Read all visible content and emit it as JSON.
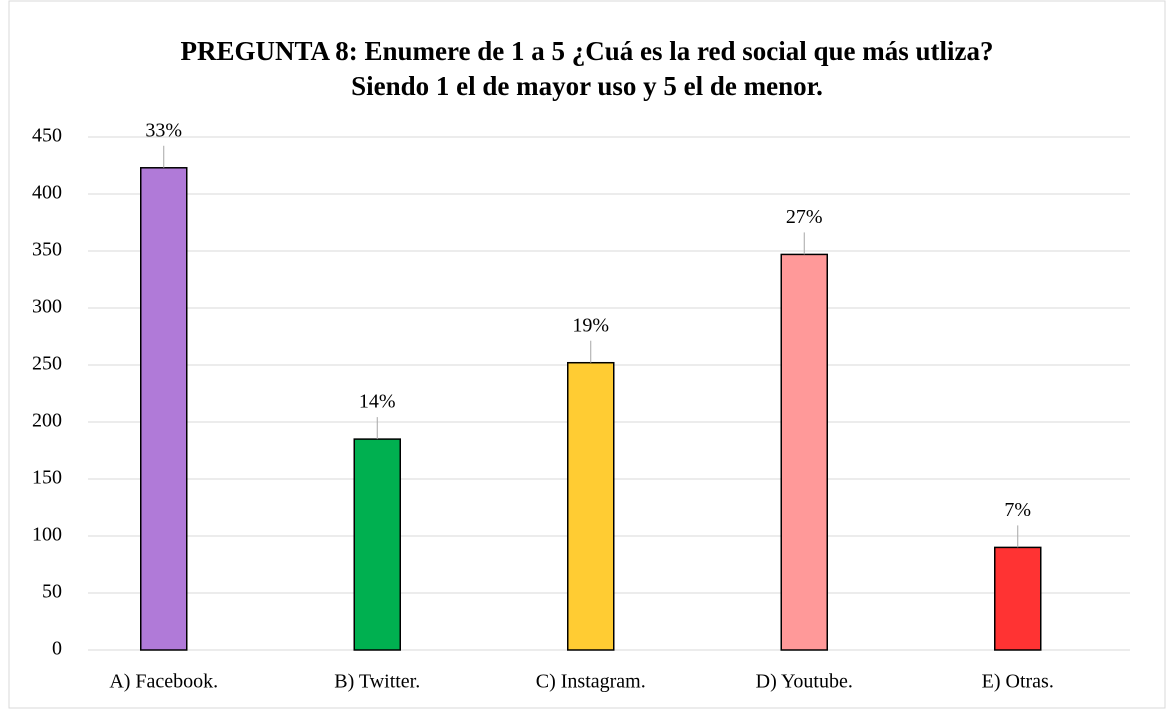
{
  "chart_data": {
    "type": "bar",
    "title": "PREGUNTA 8: Enumere de 1 a 5 ¿Cuá es la red social que más utliza? Siendo 1 el de mayor uso y 5 el de menor.",
    "categories": [
      "A) Facebook.",
      "B) Twitter.",
      "C) Instagram.",
      "D) Youtube.",
      "E) Otras."
    ],
    "values": [
      423,
      185,
      252,
      347,
      90
    ],
    "value_labels": [
      "33%",
      "14%",
      "19%",
      "27%",
      "7%"
    ],
    "colors": [
      "#b07ad8",
      "#00b050",
      "#ffcc33",
      "#ff9999",
      "#ff3333"
    ],
    "ylim": [
      0,
      450
    ],
    "yticks": [
      0,
      50,
      100,
      150,
      200,
      250,
      300,
      350,
      400,
      450
    ],
    "grid": true
  }
}
